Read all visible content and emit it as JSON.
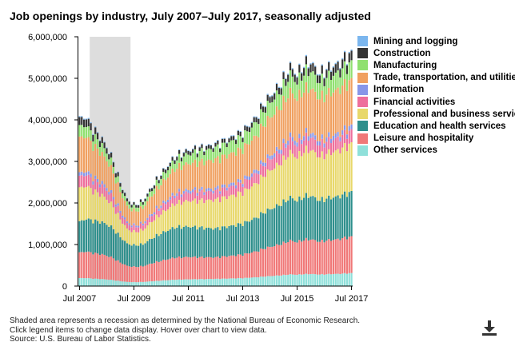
{
  "chart_data": {
    "type": "bar",
    "stacked": true,
    "title": "Job openings by industry, July 2007–July 2017, seasonally adjusted",
    "xlabel": "",
    "ylabel": "",
    "ylim": [
      0,
      6000000
    ],
    "y_ticks": [
      {
        "value": 0,
        "label": "0"
      },
      {
        "value": 1000000,
        "label": "1,000,000"
      },
      {
        "value": 2000000,
        "label": "2,000,000"
      },
      {
        "value": 3000000,
        "label": "3,000,000"
      },
      {
        "value": 4000000,
        "label": "4,000,000"
      },
      {
        "value": 5000000,
        "label": "5,000,000"
      },
      {
        "value": 6000000,
        "label": "6,000,000"
      }
    ],
    "x_ticks": [
      {
        "index": 0,
        "label": "Jul 2007"
      },
      {
        "index": 24,
        "label": "Jul 2009"
      },
      {
        "index": 48,
        "label": "Jul 2011"
      },
      {
        "index": 72,
        "label": "Jul 2013"
      },
      {
        "index": 96,
        "label": "Jul 2015"
      },
      {
        "index": 120,
        "label": "Jul 2017"
      }
    ],
    "recession": {
      "start_index": 5,
      "end_index": 23
    },
    "months": 121,
    "total_keypoints": [
      [
        0,
        4030000
      ],
      [
        3,
        4080000
      ],
      [
        6,
        3800000
      ],
      [
        10,
        3550000
      ],
      [
        14,
        3150000
      ],
      [
        18,
        2500000
      ],
      [
        21,
        2100000
      ],
      [
        24,
        1960000
      ],
      [
        28,
        2050000
      ],
      [
        32,
        2400000
      ],
      [
        36,
        2700000
      ],
      [
        42,
        3120000
      ],
      [
        48,
        3280000
      ],
      [
        54,
        3340000
      ],
      [
        60,
        3420000
      ],
      [
        66,
        3560000
      ],
      [
        72,
        3720000
      ],
      [
        78,
        4080000
      ],
      [
        82,
        4450000
      ],
      [
        86,
        4700000
      ],
      [
        90,
        4980000
      ],
      [
        93,
        5300000
      ],
      [
        96,
        5100000
      ],
      [
        99,
        5350000
      ],
      [
        102,
        5400000
      ],
      [
        106,
        5120000
      ],
      [
        110,
        5270000
      ],
      [
        114,
        5350000
      ],
      [
        118,
        5550000
      ],
      [
        120,
        5600000
      ]
    ],
    "series": [
      {
        "name": "Other services",
        "color": "#8fe0da",
        "share": [
          [
            0,
            0.045
          ],
          [
            60,
            0.05
          ],
          [
            120,
            0.055
          ]
        ]
      },
      {
        "name": "Leisure and hospitality",
        "color": "#f07878",
        "share": [
          [
            0,
            0.145
          ],
          [
            24,
            0.185
          ],
          [
            60,
            0.15
          ],
          [
            120,
            0.155
          ]
        ]
      },
      {
        "name": "Education and health services",
        "color": "#2e8f8c",
        "share": [
          [
            0,
            0.175
          ],
          [
            24,
            0.26
          ],
          [
            60,
            0.2
          ],
          [
            120,
            0.19
          ]
        ]
      },
      {
        "name": "Professional and business services",
        "color": "#e8d86a",
        "share": [
          [
            0,
            0.19
          ],
          [
            24,
            0.16
          ],
          [
            60,
            0.2
          ],
          [
            120,
            0.205
          ]
        ]
      },
      {
        "name": "Financial activities",
        "color": "#ee6f9c",
        "share": [
          [
            0,
            0.065
          ],
          [
            24,
            0.06
          ],
          [
            60,
            0.06
          ],
          [
            120,
            0.055
          ]
        ]
      },
      {
        "name": "Information",
        "color": "#8896e8",
        "share": [
          [
            0,
            0.02
          ],
          [
            60,
            0.02
          ],
          [
            120,
            0.02
          ]
        ]
      },
      {
        "name": "Trade, transportation, and utilities",
        "color": "#f0a060",
        "share": [
          [
            0,
            0.2
          ],
          [
            24,
            0.17
          ],
          [
            60,
            0.2
          ],
          [
            120,
            0.195
          ]
        ]
      },
      {
        "name": "Manufacturing",
        "color": "#90e070",
        "share": [
          [
            0,
            0.065
          ],
          [
            24,
            0.045
          ],
          [
            60,
            0.08
          ],
          [
            120,
            0.075
          ]
        ]
      },
      {
        "name": "Construction",
        "color": "#333333",
        "share": [
          [
            0,
            0.045
          ],
          [
            24,
            0.03
          ],
          [
            60,
            0.025
          ],
          [
            120,
            0.04
          ]
        ]
      },
      {
        "name": "Mining and logging",
        "color": "#7bb6ee",
        "share": [
          [
            0,
            0.005
          ],
          [
            60,
            0.005
          ],
          [
            120,
            0.005
          ]
        ]
      }
    ]
  },
  "legend": {
    "items": [
      {
        "label": "Mining and logging",
        "color": "#7bb6ee"
      },
      {
        "label": "Construction",
        "color": "#333333"
      },
      {
        "label": "Manufacturing",
        "color": "#90e070"
      },
      {
        "label": "Trade, transportation, and utilities",
        "color": "#f0a060"
      },
      {
        "label": "Information",
        "color": "#8896e8"
      },
      {
        "label": "Financial activities",
        "color": "#ee6f9c"
      },
      {
        "label": "Professional and business services",
        "color": "#e8d86a"
      },
      {
        "label": "Education and health services",
        "color": "#2e8f8c"
      },
      {
        "label": "Leisure and hospitality",
        "color": "#f07878"
      },
      {
        "label": "Other services",
        "color": "#8fe0da"
      }
    ]
  },
  "notes": {
    "line1": "Shaded area represents a recession as determined by the National Bureau of Economic Research.",
    "line2": "Click legend items to change data display. Hover over chart to view data.",
    "line3": "Source: U.S. Bureau of Labor Statistics."
  },
  "colors": {
    "recession": "#dddddd",
    "axis": "#000000"
  },
  "icons": {
    "download": "download-icon"
  }
}
